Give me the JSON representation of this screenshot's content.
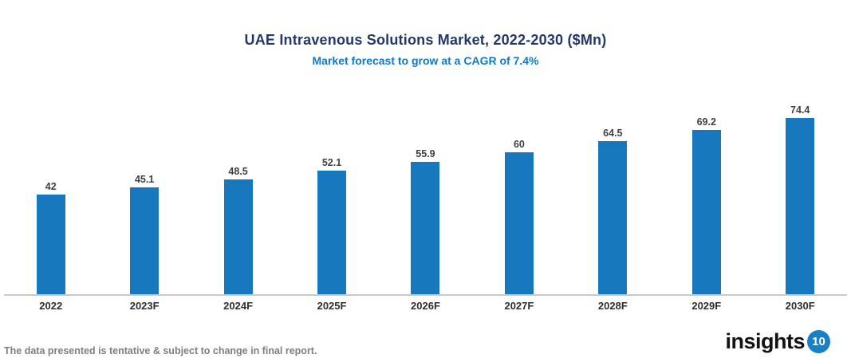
{
  "header": {
    "title": "UAE Intravenous Solutions Market, 2022-2030 ($Mn)",
    "subtitle": "Market forecast to grow at a CAGR of 7.4%"
  },
  "chart_data": {
    "type": "bar",
    "title": "UAE Intravenous Solutions Market, 2022-2030 ($Mn)",
    "subtitle": "Market forecast to grow at a CAGR of 7.4%",
    "categories": [
      "2022",
      "2023F",
      "2024F",
      "2025F",
      "2026F",
      "2027F",
      "2028F",
      "2029F",
      "2030F"
    ],
    "values": [
      42,
      45.1,
      48.5,
      52.1,
      55.9,
      60,
      64.5,
      69.2,
      74.4
    ],
    "value_labels": [
      "42",
      "45.1",
      "48.5",
      "52.1",
      "55.9",
      "60",
      "64.5",
      "69.2",
      "74.4"
    ],
    "xlabel": "",
    "ylabel": "",
    "ylim": [
      0,
      80
    ],
    "grid": false,
    "legend_position": "none",
    "bar_color": "#1778be"
  },
  "footer": {
    "disclaimer": "The data presented is tentative & subject to change in final report.",
    "logo_text": "insights",
    "logo_badge": "10"
  },
  "colors": {
    "title": "#22386b",
    "subtitle": "#0e7ac4",
    "bar": "#1778be",
    "axis_line": "#c9c9c9",
    "data_label": "#404040",
    "x_label": "#2d2d35",
    "footer_text": "#7f7f7f",
    "logo_badge_bg": "#1b7fc4"
  }
}
